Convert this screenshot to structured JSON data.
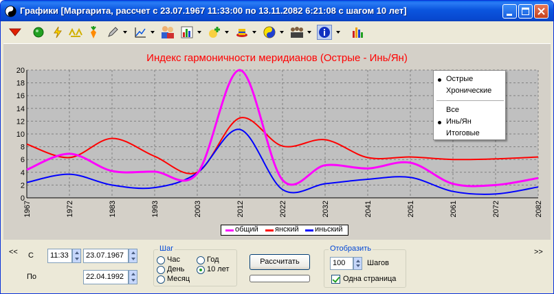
{
  "window": {
    "title": "Графики [Маргарита, рассчет с 23.07.1967 11:33:00 по 13.11.2082 6:21:08 с шагом  10 лет]"
  },
  "toolbar": {
    "icons": [
      "down-triangle-icon",
      "green-ball-icon",
      "lightning-icon",
      "stars-icon",
      "carrot-icon",
      "pen-icon",
      "chart-axes-icon",
      "people-icon",
      "bar-chart-icon",
      "plus-icon",
      "hat-icon",
      "yin-yang-icon",
      "group-icon",
      "info-icon",
      "column-chart-icon"
    ],
    "colors": {
      "accent": "#0a5fe8",
      "red_tri": "#e02000"
    }
  },
  "chart_data": {
    "type": "line",
    "title": "Индекс гармоничности меридианов (Острые - Инь/Ян)",
    "x": [
      1967,
      1972,
      1983,
      1993,
      2003,
      2012,
      2022,
      2032,
      2041,
      2051,
      2061,
      2072,
      2082
    ],
    "x_tick_labels": [
      "1967",
      "1972",
      "1983",
      "1993",
      "2003",
      "2012",
      "2022",
      "2032",
      "2041",
      "2051",
      "2061",
      "2072",
      "2082"
    ],
    "ylim": [
      0,
      20
    ],
    "y_ticks": [
      "0",
      "2",
      "4",
      "6",
      "8",
      "10",
      "12",
      "14",
      "16",
      "18",
      "20"
    ],
    "grid": true,
    "legend_position": "bottom-center",
    "series": [
      {
        "name": "общий",
        "color": "#ff00ff",
        "values": [
          4.4,
          6.9,
          4.2,
          4.1,
          3.8,
          20.0,
          2.8,
          5.1,
          4.6,
          5.5,
          2.2,
          2.0,
          3.1
        ]
      },
      {
        "name": "янский",
        "color": "#ff0000",
        "values": [
          8.4,
          6.3,
          9.3,
          6.5,
          4.0,
          12.5,
          8.1,
          9.1,
          6.3,
          6.4,
          6.0,
          6.1,
          6.4
        ]
      },
      {
        "name": "иньский",
        "color": "#0000ff",
        "values": [
          2.4,
          3.7,
          2.0,
          1.6,
          3.9,
          10.7,
          1.3,
          2.2,
          2.9,
          3.2,
          1.0,
          0.6,
          1.7
        ]
      }
    ]
  },
  "context_menu": {
    "items": [
      {
        "label": "Острые",
        "checked": true
      },
      {
        "label": "Хронические",
        "checked": false
      },
      {
        "label": "Все",
        "checked": false
      },
      {
        "label": "Инь/Ян",
        "checked": true
      },
      {
        "label": "Итоговые",
        "checked": false
      }
    ]
  },
  "bottom": {
    "prev_label": "<<",
    "next_label": ">>",
    "from_label": "С",
    "to_label": "По",
    "from_time": "11:33",
    "from_date": "23.07.1967",
    "to_date": "22.04.1992",
    "step_group": {
      "title": "Шаг",
      "options": [
        {
          "label": "Час",
          "checked": false
        },
        {
          "label": "День",
          "checked": false
        },
        {
          "label": "Месяц",
          "checked": false
        },
        {
          "label": "Год",
          "checked": false
        },
        {
          "label": "10 лет",
          "checked": true
        }
      ]
    },
    "calc_button": "Рассчитать",
    "display_group": {
      "title": "Отобразить",
      "steps_value": "100",
      "steps_label": "Шагов",
      "one_page_label": "Одна страница",
      "one_page_checked": true
    }
  }
}
